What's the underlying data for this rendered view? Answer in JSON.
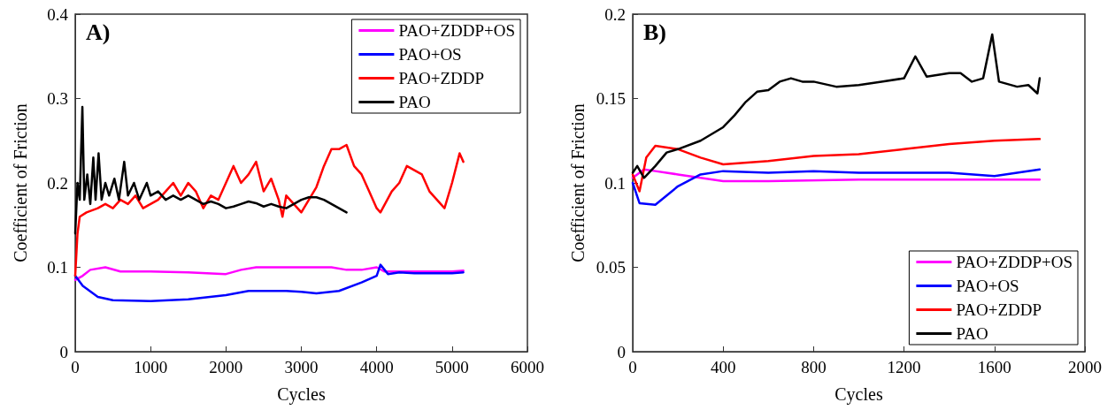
{
  "chart_data": [
    {
      "type": "line",
      "title": "A)",
      "xlabel": "Cycles",
      "ylabel": "Coefficient of Friction",
      "xlim": [
        0,
        6000
      ],
      "xticks": [
        0,
        1000,
        2000,
        3000,
        4000,
        5000,
        6000
      ],
      "ylim": [
        0,
        0.4
      ],
      "yticks": [
        0,
        0.1,
        0.2,
        0.3,
        0.4
      ],
      "grid": false,
      "legend": "top right",
      "marker": "none",
      "line_style": "solid",
      "series": [
        {
          "name": "PAO+ZDDP+OS",
          "color": "#ff00ff",
          "x": [
            0,
            100,
            200,
            400,
            600,
            1000,
            1500,
            2000,
            2200,
            2400,
            3000,
            3400,
            3600,
            3800,
            4000,
            4100,
            4500,
            5000,
            5150
          ],
          "values": [
            0.085,
            0.09,
            0.097,
            0.1,
            0.095,
            0.095,
            0.094,
            0.092,
            0.097,
            0.1,
            0.1,
            0.1,
            0.097,
            0.097,
            0.1,
            0.095,
            0.095,
            0.095,
            0.096
          ]
        },
        {
          "name": "PAO+OS",
          "color": "#0000ff",
          "x": [
            0,
            100,
            300,
            500,
            1000,
            1500,
            2000,
            2300,
            2800,
            3000,
            3200,
            3500,
            3800,
            4000,
            4050,
            4150,
            4300,
            4500,
            5000,
            5150
          ],
          "values": [
            0.09,
            0.078,
            0.065,
            0.061,
            0.06,
            0.062,
            0.067,
            0.072,
            0.072,
            0.071,
            0.069,
            0.072,
            0.082,
            0.09,
            0.103,
            0.092,
            0.094,
            0.093,
            0.093,
            0.094
          ]
        },
        {
          "name": "PAO+ZDDP",
          "color": "#ff0000",
          "x": [
            0,
            30,
            60,
            150,
            300,
            400,
            500,
            600,
            700,
            800,
            900,
            1000,
            1100,
            1200,
            1300,
            1400,
            1500,
            1600,
            1700,
            1800,
            1900,
            2000,
            2100,
            2200,
            2300,
            2400,
            2500,
            2600,
            2700,
            2750,
            2800,
            2900,
            3000,
            3100,
            3200,
            3300,
            3400,
            3500,
            3600,
            3700,
            3800,
            3900,
            4000,
            4050,
            4200,
            4300,
            4400,
            4500,
            4600,
            4700,
            4800,
            4900,
            5000,
            5100,
            5150
          ],
          "values": [
            0.09,
            0.14,
            0.16,
            0.165,
            0.17,
            0.175,
            0.17,
            0.18,
            0.175,
            0.185,
            0.17,
            0.175,
            0.18,
            0.19,
            0.2,
            0.185,
            0.2,
            0.19,
            0.17,
            0.185,
            0.18,
            0.2,
            0.22,
            0.2,
            0.21,
            0.225,
            0.19,
            0.205,
            0.18,
            0.16,
            0.185,
            0.175,
            0.165,
            0.18,
            0.195,
            0.22,
            0.24,
            0.24,
            0.245,
            0.22,
            0.21,
            0.19,
            0.17,
            0.165,
            0.19,
            0.2,
            0.22,
            0.215,
            0.21,
            0.19,
            0.18,
            0.17,
            0.2,
            0.235,
            0.225
          ]
        },
        {
          "name": "PAO",
          "color": "#000000",
          "x": [
            0,
            30,
            60,
            95,
            120,
            160,
            200,
            240,
            270,
            310,
            350,
            400,
            450,
            520,
            580,
            650,
            700,
            780,
            850,
            950,
            1000,
            1100,
            1200,
            1300,
            1400,
            1500,
            1600,
            1700,
            1800,
            1900,
            2000,
            2100,
            2200,
            2300,
            2400,
            2500,
            2600,
            2700,
            2800,
            2900,
            3000,
            3100,
            3200,
            3300,
            3400,
            3500,
            3600
          ],
          "values": [
            0.14,
            0.2,
            0.18,
            0.29,
            0.18,
            0.21,
            0.175,
            0.23,
            0.18,
            0.235,
            0.18,
            0.2,
            0.185,
            0.205,
            0.18,
            0.225,
            0.185,
            0.2,
            0.18,
            0.2,
            0.185,
            0.19,
            0.18,
            0.185,
            0.18,
            0.185,
            0.18,
            0.175,
            0.178,
            0.175,
            0.17,
            0.172,
            0.175,
            0.178,
            0.176,
            0.172,
            0.175,
            0.172,
            0.17,
            0.175,
            0.18,
            0.183,
            0.183,
            0.18,
            0.175,
            0.17,
            0.165
          ]
        }
      ]
    },
    {
      "type": "line",
      "title": "B)",
      "xlabel": "Cycles",
      "ylabel": "Coefficient of Friction",
      "xlim": [
        0,
        2000
      ],
      "xticks": [
        0,
        400,
        800,
        1200,
        1600,
        2000
      ],
      "ylim": [
        0,
        0.2
      ],
      "yticks": [
        0,
        0.05,
        0.1,
        0.15,
        0.2
      ],
      "grid": false,
      "legend": "bottom right",
      "marker": "none",
      "line_style": "solid",
      "series": [
        {
          "name": "PAO+ZDDP+OS",
          "color": "#ff00ff",
          "x": [
            0,
            50,
            100,
            200,
            400,
            600,
            1000,
            1400,
            1800
          ],
          "values": [
            0.103,
            0.108,
            0.107,
            0.105,
            0.101,
            0.101,
            0.102,
            0.102,
            0.102
          ]
        },
        {
          "name": "PAO+OS",
          "color": "#0000ff",
          "x": [
            0,
            30,
            100,
            200,
            300,
            400,
            600,
            800,
            1000,
            1200,
            1400,
            1600,
            1800
          ],
          "values": [
            0.1,
            0.088,
            0.087,
            0.098,
            0.105,
            0.107,
            0.106,
            0.107,
            0.106,
            0.106,
            0.106,
            0.104,
            0.108
          ]
        },
        {
          "name": "PAO+ZDDP",
          "color": "#ff0000",
          "x": [
            0,
            30,
            60,
            100,
            200,
            300,
            400,
            600,
            800,
            1000,
            1200,
            1400,
            1600,
            1800
          ],
          "values": [
            0.105,
            0.095,
            0.115,
            0.122,
            0.12,
            0.115,
            0.111,
            0.113,
            0.116,
            0.117,
            0.12,
            0.123,
            0.125,
            0.126
          ]
        },
        {
          "name": "PAO",
          "color": "#000000",
          "x": [
            0,
            20,
            50,
            100,
            150,
            200,
            300,
            400,
            450,
            500,
            550,
            600,
            650,
            700,
            750,
            800,
            900,
            1000,
            1100,
            1200,
            1250,
            1300,
            1400,
            1450,
            1500,
            1550,
            1590,
            1620,
            1700,
            1750,
            1790,
            1800
          ],
          "values": [
            0.106,
            0.11,
            0.103,
            0.11,
            0.118,
            0.12,
            0.125,
            0.133,
            0.14,
            0.148,
            0.154,
            0.155,
            0.16,
            0.162,
            0.16,
            0.16,
            0.157,
            0.158,
            0.16,
            0.162,
            0.175,
            0.163,
            0.165,
            0.165,
            0.16,
            0.162,
            0.188,
            0.16,
            0.157,
            0.158,
            0.153,
            0.162
          ]
        }
      ]
    }
  ]
}
